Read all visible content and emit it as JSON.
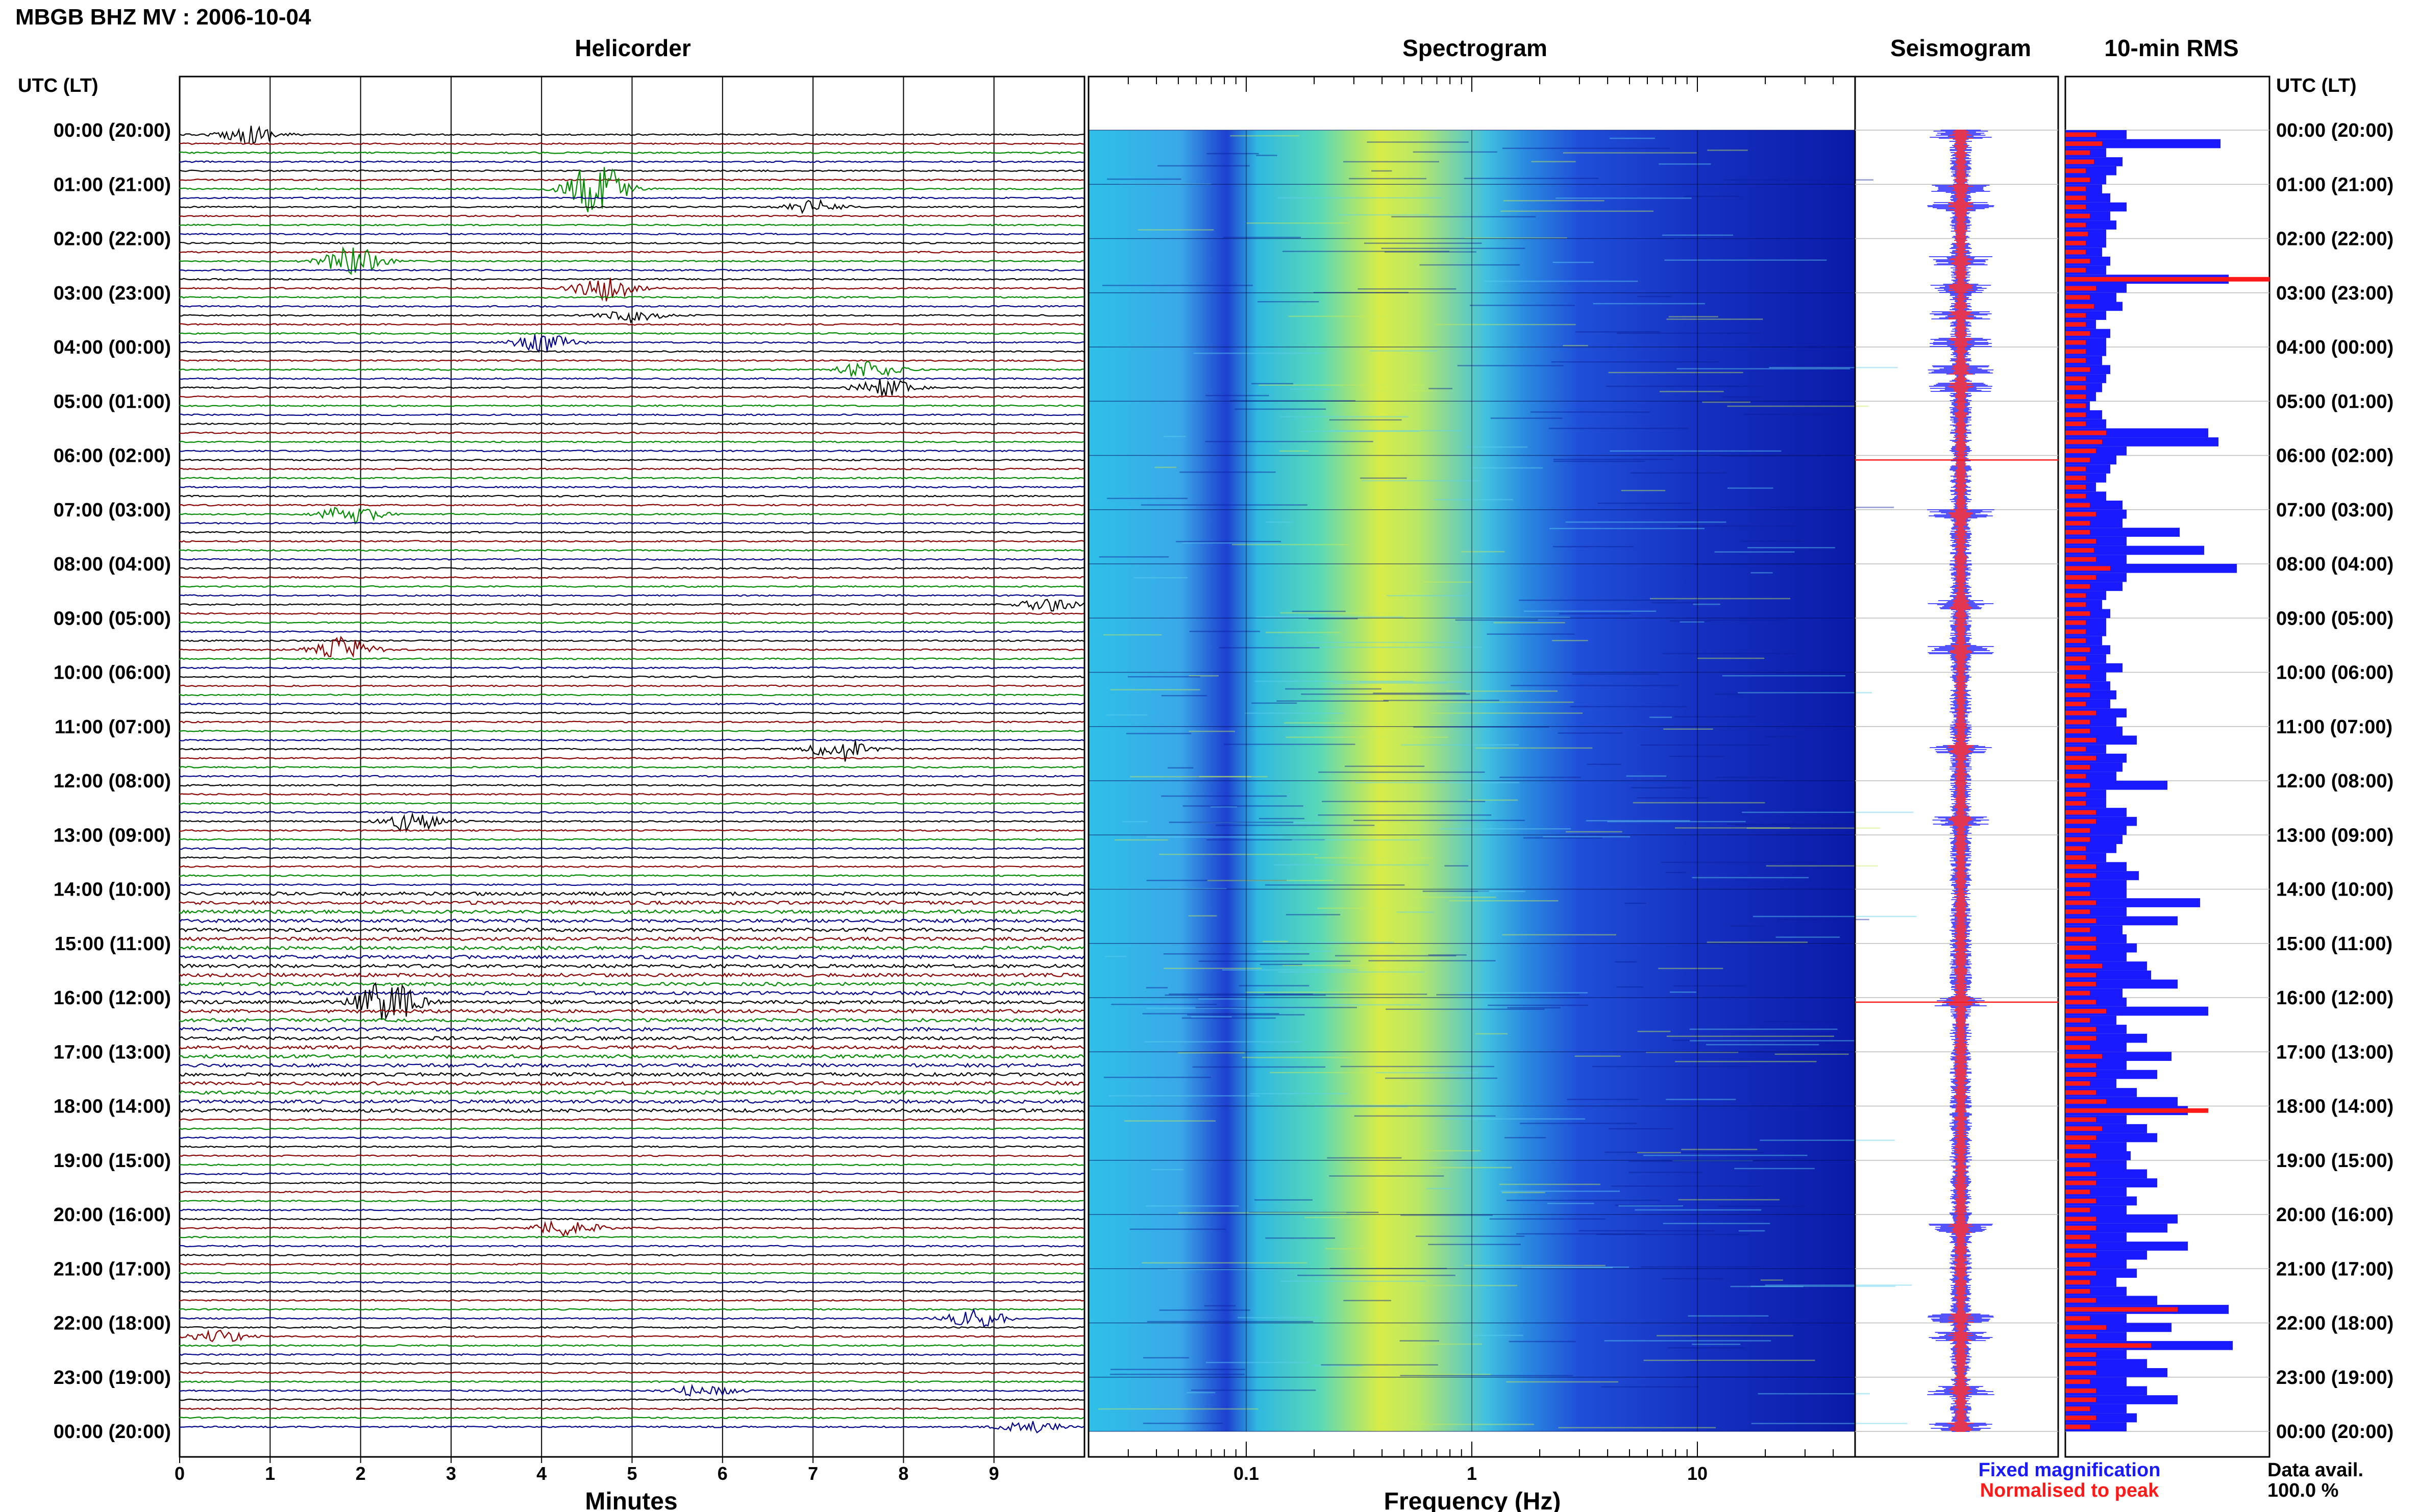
{
  "station_title": "MBGB BHZ MV : 2006-10-04",
  "utc_lt_label": "UTC (LT)",
  "panels": {
    "helicorder": {
      "title": "Helicorder",
      "xlabel": "Minutes"
    },
    "spectrogram": {
      "title": "Spectrogram",
      "xlabel": "Frequency (Hz)"
    },
    "seismogram": {
      "title": "Seismogram"
    },
    "rms": {
      "title": "10-min RMS"
    }
  },
  "legend": {
    "fixed": "Fixed magnification",
    "normalised": "Normalised to peak",
    "fixed_color": "#1a1aff",
    "normalised_color": "#ff1a1a"
  },
  "data_avail": {
    "label": "Data avail.",
    "value": "100.0 %"
  },
  "colors": {
    "trace_cycle": [
      "#000000",
      "#8b0000",
      "#008b00",
      "#00008b"
    ],
    "spectro_low": "#0a1aa8",
    "spectro_mid": "#2ec0e8",
    "spectro_high": "#e8f040"
  },
  "chart_data": [
    {
      "type": "line",
      "name": "helicorder",
      "title": "Helicorder",
      "xlabel": "Minutes",
      "x_ticks": [
        "0",
        "1",
        "2",
        "3",
        "4",
        "5",
        "6",
        "7",
        "8",
        "9"
      ],
      "xlim": [
        0,
        10
      ],
      "rows": 144,
      "time_labels": [
        "00:00 (20:00)",
        "01:00 (21:00)",
        "02:00 (22:00)",
        "03:00 (23:00)",
        "04:00 (00:00)",
        "05:00 (01:00)",
        "06:00 (02:00)",
        "07:00 (03:00)",
        "08:00 (04:00)",
        "09:00 (05:00)",
        "10:00 (06:00)",
        "11:00 (07:00)",
        "12:00 (08:00)",
        "13:00 (09:00)",
        "14:00 (10:00)",
        "15:00 (11:00)",
        "16:00 (12:00)",
        "17:00 (13:00)",
        "18:00 (14:00)",
        "19:00 (15:00)",
        "20:00 (16:00)",
        "21:00 (17:00)",
        "22:00 (18:00)",
        "23:00 (19:00)",
        "00:00 (20:00)"
      ],
      "events": [
        {
          "row": 0,
          "minute": 0.8,
          "amp": 3
        },
        {
          "row": 6,
          "minute": 4.6,
          "amp": 9
        },
        {
          "row": 8,
          "minute": 7.0,
          "amp": 2
        },
        {
          "row": 14,
          "minute": 1.9,
          "amp": 5
        },
        {
          "row": 17,
          "minute": 4.7,
          "amp": 4
        },
        {
          "row": 20,
          "minute": 5.0,
          "amp": 2
        },
        {
          "row": 23,
          "minute": 4.0,
          "amp": 3
        },
        {
          "row": 26,
          "minute": 7.6,
          "amp": 3
        },
        {
          "row": 28,
          "minute": 7.8,
          "amp": 3
        },
        {
          "row": 42,
          "minute": 1.9,
          "amp": 3
        },
        {
          "row": 52,
          "minute": 9.6,
          "amp": 2
        },
        {
          "row": 57,
          "minute": 1.8,
          "amp": 4
        },
        {
          "row": 68,
          "minute": 7.3,
          "amp": 4
        },
        {
          "row": 76,
          "minute": 2.6,
          "amp": 4
        },
        {
          "row": 96,
          "minute": 2.3,
          "amp": 7
        },
        {
          "row": 121,
          "minute": 4.3,
          "amp": 3
        },
        {
          "row": 131,
          "minute": 8.8,
          "amp": 3
        },
        {
          "row": 133,
          "minute": 0.4,
          "amp": 2
        },
        {
          "row": 139,
          "minute": 5.8,
          "amp": 2
        },
        {
          "row": 143,
          "minute": 9.4,
          "amp": 2
        }
      ]
    },
    {
      "type": "heatmap",
      "name": "spectrogram",
      "title": "Spectrogram",
      "xlabel": "Frequency (Hz)",
      "x_scale": "log",
      "xlim": [
        0.02,
        50
      ],
      "x_ticks": [
        "0.1",
        "1",
        "10"
      ],
      "peak_band_hz": [
        0.2,
        0.6
      ]
    },
    {
      "type": "bar",
      "name": "10-min RMS",
      "title": "10-min RMS",
      "series": [
        {
          "name": "Fixed magnification",
          "color": "#1a1aff",
          "values": [
            0.3,
            0.76,
            0.2,
            0.28,
            0.25,
            0.2,
            0.18,
            0.22,
            0.3,
            0.22,
            0.25,
            0.2,
            0.2,
            0.18,
            0.22,
            0.2,
            0.8,
            0.3,
            0.25,
            0.28,
            0.2,
            0.15,
            0.22,
            0.2,
            0.2,
            0.18,
            0.22,
            0.2,
            0.18,
            0.15,
            0.12,
            0.18,
            0.2,
            0.7,
            0.75,
            0.3,
            0.25,
            0.22,
            0.2,
            0.15,
            0.2,
            0.28,
            0.3,
            0.28,
            0.56,
            0.3,
            0.68,
            0.3,
            0.84,
            0.3,
            0.28,
            0.2,
            0.18,
            0.22,
            0.2,
            0.2,
            0.18,
            0.22,
            0.2,
            0.28,
            0.2,
            0.22,
            0.25,
            0.22,
            0.3,
            0.25,
            0.28,
            0.35,
            0.2,
            0.3,
            0.28,
            0.25,
            0.5,
            0.2,
            0.2,
            0.3,
            0.35,
            0.3,
            0.28,
            0.25,
            0.2,
            0.3,
            0.36,
            0.3,
            0.3,
            0.66,
            0.3,
            0.55,
            0.28,
            0.3,
            0.35,
            0.3,
            0.4,
            0.42,
            0.55,
            0.28,
            0.3,
            0.7,
            0.25,
            0.3,
            0.4,
            0.3,
            0.52,
            0.3,
            0.45,
            0.25,
            0.35,
            0.55,
            0.6,
            0.3,
            0.4,
            0.45,
            0.3,
            0.32,
            0.3,
            0.4,
            0.45,
            0.3,
            0.35,
            0.3,
            0.55,
            0.5,
            0.3,
            0.6,
            0.4,
            0.3,
            0.35,
            0.25,
            0.3,
            0.45,
            0.8,
            0.3,
            0.52,
            0.3,
            0.82,
            0.3,
            0.4,
            0.5,
            0.3,
            0.4,
            0.55,
            0.3,
            0.35,
            0.3
          ]
        },
        {
          "name": "Normalised to peak",
          "color": "#ff1a1a",
          "values": [
            0.15,
            0.18,
            0.12,
            0.14,
            0.1,
            0.12,
            0.1,
            0.1,
            0.1,
            0.12,
            0.1,
            0.11,
            0.1,
            0.1,
            0.12,
            0.1,
            1.0,
            0.15,
            0.12,
            0.14,
            0.1,
            0.1,
            0.12,
            0.1,
            0.1,
            0.1,
            0.12,
            0.1,
            0.1,
            0.1,
            0.1,
            0.1,
            0.1,
            0.2,
            0.18,
            0.15,
            0.12,
            0.1,
            0.1,
            0.1,
            0.1,
            0.12,
            0.15,
            0.12,
            0.12,
            0.15,
            0.14,
            0.15,
            0.22,
            0.15,
            0.12,
            0.1,
            0.1,
            0.12,
            0.1,
            0.1,
            0.1,
            0.12,
            0.1,
            0.12,
            0.1,
            0.12,
            0.12,
            0.1,
            0.15,
            0.12,
            0.12,
            0.15,
            0.1,
            0.15,
            0.12,
            0.1,
            0.12,
            0.1,
            0.1,
            0.15,
            0.15,
            0.12,
            0.12,
            0.1,
            0.1,
            0.15,
            0.15,
            0.12,
            0.12,
            0.15,
            0.12,
            0.15,
            0.12,
            0.15,
            0.15,
            0.12,
            0.18,
            0.15,
            0.15,
            0.12,
            0.15,
            0.2,
            0.12,
            0.15,
            0.15,
            0.12,
            0.18,
            0.15,
            0.15,
            0.12,
            0.15,
            0.2,
            0.7,
            0.15,
            0.18,
            0.15,
            0.12,
            0.15,
            0.12,
            0.15,
            0.15,
            0.12,
            0.15,
            0.12,
            0.15,
            0.15,
            0.12,
            0.15,
            0.15,
            0.12,
            0.15,
            0.12,
            0.12,
            0.15,
            0.55,
            0.12,
            0.2,
            0.15,
            0.42,
            0.15,
            0.15,
            0.15,
            0.12,
            0.15,
            0.15,
            0.12,
            0.15,
            0.12
          ]
        }
      ]
    }
  ]
}
